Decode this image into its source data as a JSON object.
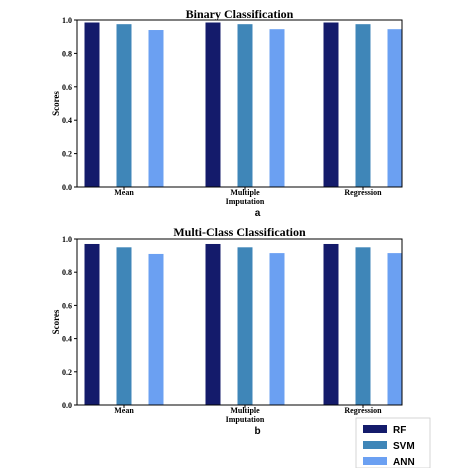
{
  "legend": {
    "placement": "bottom-right",
    "entries": [
      {
        "name": "RF",
        "color": "#141B6B"
      },
      {
        "name": "SVM",
        "color": "#3F86B8"
      },
      {
        "name": "ANN",
        "color": "#6BA0F2"
      }
    ]
  },
  "chart_data": [
    {
      "type": "bar",
      "panel_label": "a",
      "title": "Binary Classification",
      "ylabel": "Scores",
      "ylim": [
        0,
        1.0
      ],
      "yticks": [
        "0.0",
        "0.2",
        "0.4",
        "0.6",
        "0.8",
        "1.0"
      ],
      "categories": [
        [
          "Mean"
        ],
        [
          "Multiple",
          "Imputation"
        ],
        [
          "Regression"
        ]
      ],
      "series": [
        {
          "name": "RF",
          "color": "#141B6B",
          "values": [
            0.985,
            0.985,
            0.985
          ]
        },
        {
          "name": "SVM",
          "color": "#3F86B8",
          "values": [
            0.975,
            0.975,
            0.975
          ]
        },
        {
          "name": "ANN",
          "color": "#6BA0F2",
          "values": [
            0.94,
            0.945,
            0.945
          ]
        }
      ]
    },
    {
      "type": "bar",
      "panel_label": "b",
      "title": "Multi-Class Classification",
      "ylabel": "Scores",
      "ylim": [
        0,
        1.0
      ],
      "yticks": [
        "0.0",
        "0.2",
        "0.4",
        "0.6",
        "0.8",
        "1.0"
      ],
      "categories": [
        [
          "Mean"
        ],
        [
          "Multiple",
          "Imputation"
        ],
        [
          "Regression"
        ]
      ],
      "series": [
        {
          "name": "RF",
          "color": "#141B6B",
          "values": [
            0.97,
            0.97,
            0.97
          ]
        },
        {
          "name": "SVM",
          "color": "#3F86B8",
          "values": [
            0.95,
            0.95,
            0.95
          ]
        },
        {
          "name": "ANN",
          "color": "#6BA0F2",
          "values": [
            0.91,
            0.915,
            0.915
          ]
        }
      ]
    }
  ]
}
